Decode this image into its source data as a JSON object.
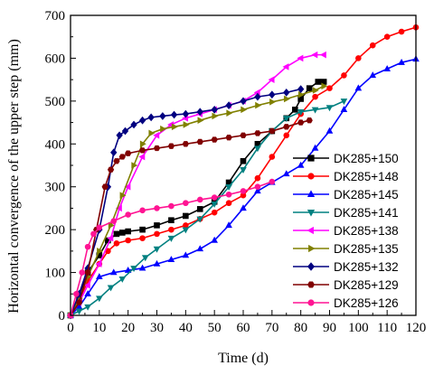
{
  "chart_data": {
    "type": "line",
    "xlabel": "Time (d)",
    "ylabel": "Horizontal convergence of the upper step (mm)",
    "xlim": [
      0,
      120
    ],
    "ylim": [
      0,
      700
    ],
    "xticks": [
      "0",
      "10",
      "20",
      "30",
      "40",
      "50",
      "60",
      "70",
      "80",
      "90",
      "100",
      "110",
      "120"
    ],
    "yticks": [
      "0",
      "100",
      "200",
      "300",
      "400",
      "500",
      "600",
      "700"
    ],
    "grid": false,
    "legend_position": "right",
    "series": [
      {
        "name": "DK285+150",
        "color": "#000000",
        "marker": "square",
        "x": [
          0,
          3,
          6,
          10,
          13,
          16,
          18,
          20,
          25,
          30,
          35,
          40,
          45,
          50,
          55,
          60,
          65,
          70,
          75,
          78,
          80,
          83,
          86,
          88
        ],
        "y": [
          0,
          40,
          100,
          140,
          175,
          190,
          193,
          196,
          200,
          210,
          222,
          232,
          248,
          265,
          310,
          360,
          400,
          430,
          460,
          480,
          505,
          530,
          545,
          545
        ]
      },
      {
        "name": "DK285+148",
        "color": "#ff0000",
        "marker": "circle",
        "x": [
          0,
          3,
          6,
          10,
          13,
          16,
          20,
          25,
          30,
          35,
          40,
          45,
          50,
          55,
          60,
          65,
          70,
          75,
          80,
          85,
          90,
          95,
          100,
          105,
          110,
          115,
          120
        ],
        "y": [
          0,
          35,
          80,
          120,
          150,
          168,
          175,
          180,
          190,
          200,
          210,
          225,
          240,
          262,
          280,
          320,
          370,
          420,
          470,
          510,
          530,
          560,
          600,
          630,
          650,
          662,
          672
        ]
      },
      {
        "name": "DK285+145",
        "color": "#0000ff",
        "marker": "triangle",
        "x": [
          0,
          3,
          6,
          10,
          15,
          20,
          25,
          30,
          35,
          40,
          45,
          50,
          55,
          60,
          65,
          70,
          75,
          80,
          85,
          90,
          95,
          100,
          105,
          110,
          115,
          120
        ],
        "y": [
          0,
          20,
          50,
          90,
          100,
          105,
          110,
          120,
          130,
          140,
          155,
          175,
          210,
          250,
          290,
          310,
          330,
          350,
          390,
          430,
          480,
          530,
          560,
          575,
          590,
          598
        ]
      },
      {
        "name": "DK285+141",
        "color": "#008080",
        "marker": "triangle-down",
        "x": [
          0,
          3,
          6,
          10,
          14,
          18,
          22,
          26,
          30,
          35,
          40,
          45,
          50,
          55,
          60,
          65,
          70,
          75,
          80,
          85,
          90,
          95
        ],
        "y": [
          0,
          10,
          20,
          40,
          65,
          85,
          110,
          135,
          155,
          180,
          200,
          225,
          260,
          300,
          340,
          390,
          430,
          460,
          475,
          480,
          485,
          500
        ]
      },
      {
        "name": "DK285+138",
        "color": "#ff00ff",
        "marker": "triangle-left",
        "x": [
          0,
          3,
          6,
          10,
          14,
          17,
          20,
          25,
          30,
          35,
          40,
          45,
          50,
          55,
          60,
          65,
          70,
          75,
          80,
          85,
          88
        ],
        "y": [
          0,
          30,
          70,
          120,
          180,
          250,
          300,
          370,
          420,
          445,
          460,
          470,
          480,
          490,
          500,
          520,
          550,
          580,
          600,
          608,
          608
        ]
      },
      {
        "name": "DK285+135",
        "color": "#808000",
        "marker": "triangle-right",
        "x": [
          0,
          3,
          6,
          10,
          14,
          18,
          22,
          25,
          28,
          32,
          36,
          40,
          45,
          50,
          55,
          60,
          65,
          70,
          75,
          80,
          85,
          88
        ],
        "y": [
          0,
          40,
          90,
          150,
          210,
          280,
          350,
          400,
          425,
          435,
          440,
          445,
          455,
          465,
          472,
          480,
          490,
          498,
          505,
          515,
          525,
          535
        ]
      },
      {
        "name": "DK285+132",
        "color": "#000080",
        "marker": "diamond",
        "x": [
          0,
          3,
          6,
          10,
          13,
          15,
          17,
          19,
          22,
          25,
          28,
          32,
          36,
          40,
          45,
          50,
          55,
          60,
          65,
          70,
          75,
          80
        ],
        "y": [
          0,
          50,
          110,
          200,
          300,
          380,
          420,
          430,
          445,
          455,
          462,
          465,
          468,
          470,
          475,
          480,
          490,
          500,
          510,
          515,
          520,
          528
        ]
      },
      {
        "name": "DK285+129",
        "color": "#800000",
        "marker": "hexagon",
        "x": [
          0,
          3,
          6,
          9,
          12,
          14,
          16,
          18,
          20,
          25,
          30,
          35,
          40,
          45,
          50,
          55,
          60,
          65,
          70,
          75,
          80,
          83
        ],
        "y": [
          0,
          30,
          100,
          200,
          300,
          340,
          360,
          370,
          378,
          385,
          390,
          395,
          400,
          405,
          410,
          415,
          420,
          425,
          430,
          440,
          450,
          455
        ]
      },
      {
        "name": "DK285+126",
        "color": "#ff1493",
        "marker": "circle",
        "x": [
          0,
          2,
          4,
          6,
          8,
          10,
          15,
          20,
          25,
          30,
          35,
          40,
          45,
          50,
          55,
          60,
          65,
          70
        ],
        "y": [
          0,
          50,
          100,
          160,
          190,
          205,
          220,
          235,
          245,
          250,
          255,
          262,
          270,
          275,
          282,
          290,
          300,
          312
        ]
      }
    ]
  }
}
